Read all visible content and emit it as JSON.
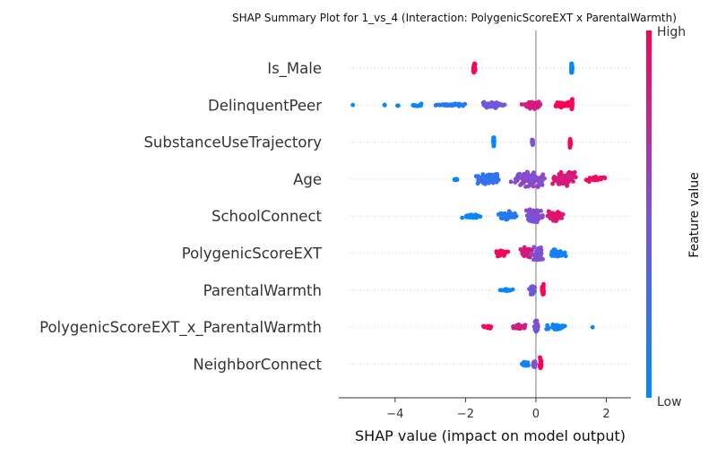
{
  "chart_data": {
    "type": "scatter",
    "subtype": "shap-beeswarm",
    "title": "SHAP Summary Plot for 1_vs_4 (Interaction: PolygenicScoreEXT x ParentalWarmth)",
    "xlabel": "SHAP value (impact on model output)",
    "xlim": [
      -5.6,
      2.7
    ],
    "xticks": [
      {
        "value": -4,
        "label": "−4"
      },
      {
        "value": -2,
        "label": "−2"
      },
      {
        "value": 0,
        "label": "0"
      },
      {
        "value": 2,
        "label": "2"
      }
    ],
    "zero_line": true,
    "colorbar": {
      "label": "Feature value",
      "high_label": "High",
      "low_label": "Low",
      "low_color": "#008afb",
      "mid_color": "#7c52d8",
      "high_color": "#ff0052"
    },
    "features": [
      {
        "name": "Is_Male",
        "clusters": [
          {
            "x": -1.75,
            "spread": 0.04,
            "color": 1,
            "count": 40,
            "h": 7
          },
          {
            "x": 1.02,
            "spread": 0.02,
            "color": 0,
            "count": 40,
            "h": 8
          }
        ]
      },
      {
        "name": "DelinquentPeer",
        "clusters": [
          {
            "x": -5.2,
            "spread": 0.02,
            "color": 0,
            "count": 1,
            "h": 1
          },
          {
            "x": -4.3,
            "spread": 0.02,
            "color": 0,
            "count": 2,
            "h": 1
          },
          {
            "x": -3.9,
            "spread": 0.1,
            "color": 0.02,
            "count": 3,
            "h": 1
          },
          {
            "x": -3.4,
            "spread": 0.3,
            "color": 0.05,
            "count": 10,
            "h": 2
          },
          {
            "x": -2.4,
            "spread": 0.5,
            "color": 0.15,
            "count": 30,
            "h": 2
          },
          {
            "x": -1.2,
            "spread": 0.5,
            "color": 0.45,
            "count": 60,
            "h": 4
          },
          {
            "x": -0.1,
            "spread": 0.35,
            "color": 0.85,
            "count": 60,
            "h": 5
          },
          {
            "x": 0.75,
            "spread": 0.3,
            "color": 1,
            "count": 40,
            "h": 5
          },
          {
            "x": 1.02,
            "spread": 0.02,
            "color": 1,
            "count": 30,
            "h": 8
          }
        ]
      },
      {
        "name": "SubstanceUseTrajectory",
        "clusters": [
          {
            "x": -1.2,
            "spread": 0.02,
            "color": 0,
            "count": 30,
            "h": 8
          },
          {
            "x": -0.1,
            "spread": 0.02,
            "color": 0.5,
            "count": 20,
            "h": 6
          },
          {
            "x": 0.97,
            "spread": 0.02,
            "color": 1,
            "count": 30,
            "h": 8
          }
        ]
      },
      {
        "name": "Age",
        "clusters": [
          {
            "x": -2.3,
            "spread": 0.15,
            "color": 0.05,
            "count": 6,
            "h": 3
          },
          {
            "x": -1.4,
            "spread": 0.5,
            "color": 0.2,
            "count": 90,
            "h": 8
          },
          {
            "x": -0.2,
            "spread": 0.6,
            "color": 0.55,
            "count": 120,
            "h": 10
          },
          {
            "x": 0.8,
            "spread": 0.5,
            "color": 0.85,
            "count": 90,
            "h": 9
          },
          {
            "x": 1.7,
            "spread": 0.4,
            "color": 0.95,
            "count": 25,
            "h": 4
          }
        ]
      },
      {
        "name": "SchoolConnect",
        "clusters": [
          {
            "x": -1.8,
            "spread": 0.35,
            "color": 0.02,
            "count": 25,
            "h": 3
          },
          {
            "x": -0.8,
            "spread": 0.35,
            "color": 0.15,
            "count": 60,
            "h": 6
          },
          {
            "x": -0.05,
            "spread": 0.3,
            "color": 0.5,
            "count": 80,
            "h": 10
          },
          {
            "x": 0.55,
            "spread": 0.3,
            "color": 0.9,
            "count": 50,
            "h": 7
          }
        ]
      },
      {
        "name": "PolygenicScoreEXT",
        "clusters": [
          {
            "x": -0.95,
            "spread": 0.25,
            "color": 1,
            "count": 35,
            "h": 4
          },
          {
            "x": -0.25,
            "spread": 0.25,
            "color": 0.85,
            "count": 60,
            "h": 8
          },
          {
            "x": 0.05,
            "spread": 0.2,
            "color": 0.5,
            "count": 60,
            "h": 11
          },
          {
            "x": 0.6,
            "spread": 0.3,
            "color": 0.1,
            "count": 40,
            "h": 5
          }
        ]
      },
      {
        "name": "ParentalWarmth",
        "clusters": [
          {
            "x": -0.85,
            "spread": 0.25,
            "color": 0,
            "count": 20,
            "h": 2
          },
          {
            "x": -0.1,
            "spread": 0.1,
            "color": 0.45,
            "count": 30,
            "h": 8
          },
          {
            "x": 0.2,
            "spread": 0.04,
            "color": 1,
            "count": 30,
            "h": 9
          }
        ]
      },
      {
        "name": "PolygenicScoreEXT_x_ParentalWarmth",
        "clusters": [
          {
            "x": -1.35,
            "spread": 0.25,
            "color": 1,
            "count": 12,
            "h": 2
          },
          {
            "x": -0.5,
            "spread": 0.3,
            "color": 0.85,
            "count": 30,
            "h": 4
          },
          {
            "x": 0.0,
            "spread": 0.08,
            "color": 0.5,
            "count": 40,
            "h": 11
          },
          {
            "x": 0.6,
            "spread": 0.35,
            "color": 0.05,
            "count": 35,
            "h": 4
          },
          {
            "x": 1.6,
            "spread": 0.04,
            "color": 0,
            "count": 1,
            "h": 1
          }
        ]
      },
      {
        "name": "NeighborConnect",
        "clusters": [
          {
            "x": -0.3,
            "spread": 0.15,
            "color": 0.05,
            "count": 20,
            "h": 3
          },
          {
            "x": -0.05,
            "spread": 0.05,
            "color": 0.5,
            "count": 20,
            "h": 6
          },
          {
            "x": 0.13,
            "spread": 0.04,
            "color": 1,
            "count": 30,
            "h": 10
          }
        ]
      }
    ]
  }
}
